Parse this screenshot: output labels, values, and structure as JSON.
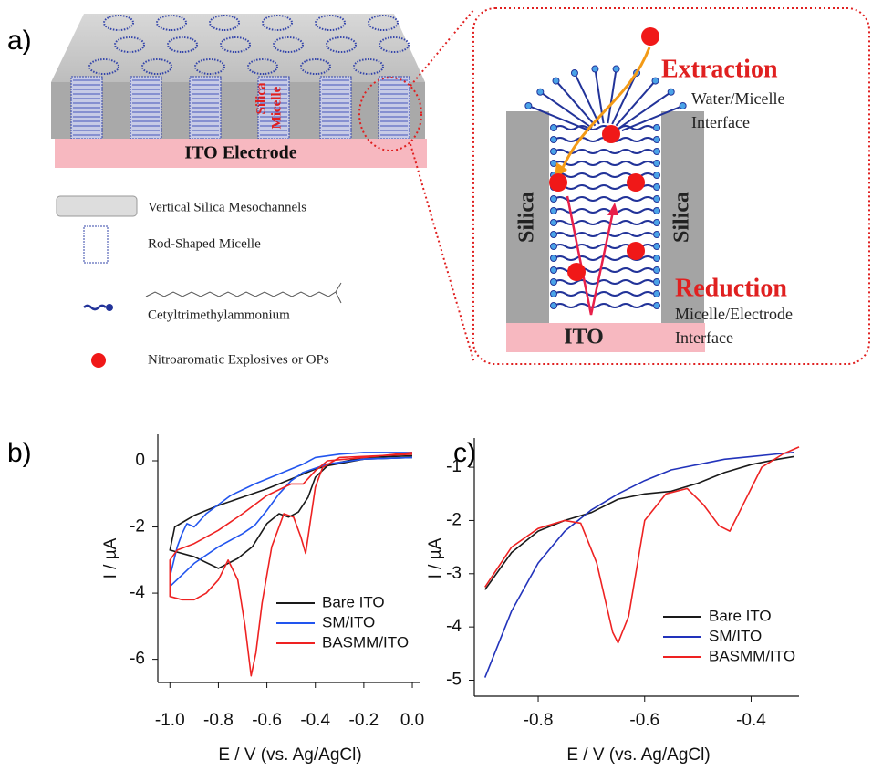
{
  "panel_a": {
    "label": "a)",
    "silica_label": "Silica",
    "micelle_label": "Micelle",
    "electrode_label": "ITO Electrode",
    "legend": [
      "Vertical Silica Mesochannels",
      "Rod-Shaped Micelle",
      "Cetyltrimethylammonium",
      "Nitroaromatic Explosives or OPs"
    ],
    "inset": {
      "extraction": "Extraction",
      "water_interface": [
        "Water/Micelle",
        "Interface"
      ],
      "silica_left": "Silica",
      "silica_right": "Silica",
      "reduction": "Reduction",
      "electrode_interface": [
        "Micelle/Electrode",
        "Interface"
      ],
      "ito": "ITO"
    }
  },
  "chart_data": [
    {
      "type": "line",
      "panel_label": "b)",
      "x_label": "E / V (vs. Ag/AgCl)",
      "y_label": "I / µA",
      "xlim": [
        -1.05,
        0.03
      ],
      "ylim": [
        -6.7,
        0.8
      ],
      "xticks": [
        {
          "value": -1.0,
          "label": "-1.0"
        },
        -0.8,
        -0.6,
        -0.4,
        -0.2,
        {
          "value": 0.0,
          "label": "0.0"
        }
      ],
      "yticks": [
        0,
        -2,
        -4,
        -6
      ],
      "series": [
        {
          "name": "Bare ITO",
          "color": "#1a1a1a",
          "x": [
            0,
            -0.2,
            -0.35,
            -0.4,
            -0.43,
            -0.47,
            -0.51,
            -0.55,
            -0.6,
            -0.66,
            -0.72,
            -0.8,
            -0.9,
            -1.0,
            -0.98,
            -0.9,
            -0.8,
            -0.7,
            -0.6,
            -0.5,
            -0.4,
            -0.3,
            -0.2,
            0
          ],
          "values": [
            0.1,
            0.05,
            -0.15,
            -0.5,
            -1.1,
            -1.55,
            -1.7,
            -1.6,
            -1.9,
            -2.6,
            -2.95,
            -3.25,
            -2.9,
            -2.7,
            -2.0,
            -1.65,
            -1.35,
            -1.1,
            -0.85,
            -0.55,
            -0.25,
            -0.05,
            0.1,
            0.15
          ]
        },
        {
          "name": "SM/ITO",
          "color": "#2255ee",
          "x": [
            0,
            -0.2,
            -0.35,
            -0.45,
            -0.5,
            -0.55,
            -0.6,
            -0.65,
            -0.7,
            -0.8,
            -0.9,
            -1.0,
            -1.0,
            -0.97,
            -0.95,
            -0.93,
            -0.9,
            -0.85,
            -0.75,
            -0.65,
            -0.55,
            -0.45,
            -0.4,
            -0.3,
            -0.2,
            0
          ],
          "values": [
            0.1,
            0.05,
            -0.1,
            -0.35,
            -0.6,
            -1.0,
            -1.5,
            -1.95,
            -2.2,
            -2.6,
            -3.1,
            -3.8,
            -3.5,
            -2.6,
            -2.2,
            -1.9,
            -2.0,
            -1.6,
            -1.05,
            -0.7,
            -0.4,
            -0.1,
            0.1,
            0.2,
            0.25,
            0.25
          ]
        },
        {
          "name": "BASMM/ITO",
          "color": "#ee2222",
          "x": [
            0,
            -0.3,
            -0.37,
            -0.4,
            -0.42,
            -0.44,
            -0.46,
            -0.49,
            -0.53,
            -0.58,
            -0.62,
            -0.645,
            -0.665,
            -0.69,
            -0.72,
            -0.76,
            -0.8,
            -0.85,
            -0.9,
            -0.95,
            -1.0,
            -1.0,
            -0.97,
            -0.9,
            -0.8,
            -0.7,
            -0.6,
            -0.5,
            -0.45,
            -0.4,
            -0.35,
            -0.2,
            0
          ],
          "values": [
            0.2,
            0.1,
            -0.2,
            -0.8,
            -1.8,
            -2.8,
            -2.3,
            -1.7,
            -1.6,
            -2.6,
            -4.3,
            -5.8,
            -6.5,
            -5.0,
            -3.6,
            -3.0,
            -3.6,
            -4.0,
            -4.2,
            -4.2,
            -4.1,
            -3.0,
            -2.7,
            -2.5,
            -2.1,
            -1.6,
            -1.05,
            -0.7,
            -0.7,
            -0.3,
            0.0,
            0.1,
            0.25
          ]
        }
      ]
    },
    {
      "type": "line",
      "panel_label": "c)",
      "x_label": "E / V (vs. Ag/AgCl)",
      "y_label": "I / µA",
      "xlim": [
        -0.92,
        -0.31
      ],
      "ylim": [
        -5.3,
        -0.45
      ],
      "xticks": [
        -0.8,
        -0.6,
        -0.4
      ],
      "yticks": [
        -1,
        -2,
        -3,
        -4,
        -5
      ],
      "series": [
        {
          "name": "Bare ITO",
          "color": "#1a1a1a",
          "x": [
            -0.9,
            -0.85,
            -0.8,
            -0.75,
            -0.7,
            -0.65,
            -0.6,
            -0.55,
            -0.5,
            -0.45,
            -0.4,
            -0.35,
            -0.32
          ],
          "values": [
            -3.3,
            -2.6,
            -2.2,
            -2.0,
            -1.85,
            -1.6,
            -1.5,
            -1.45,
            -1.3,
            -1.1,
            -0.95,
            -0.85,
            -0.8
          ]
        },
        {
          "name": "SM/ITO",
          "color": "#2233bb",
          "x": [
            -0.9,
            -0.85,
            -0.8,
            -0.75,
            -0.7,
            -0.65,
            -0.6,
            -0.55,
            -0.5,
            -0.45,
            -0.4,
            -0.35,
            -0.32
          ],
          "values": [
            -4.95,
            -3.7,
            -2.8,
            -2.2,
            -1.8,
            -1.5,
            -1.25,
            -1.05,
            -0.95,
            -0.85,
            -0.8,
            -0.75,
            -0.72
          ]
        },
        {
          "name": "BASMM/ITO",
          "color": "#ee2222",
          "x": [
            -0.9,
            -0.85,
            -0.8,
            -0.75,
            -0.72,
            -0.69,
            -0.66,
            -0.65,
            -0.63,
            -0.6,
            -0.56,
            -0.52,
            -0.49,
            -0.46,
            -0.44,
            -0.42,
            -0.38,
            -0.34,
            -0.31
          ],
          "values": [
            -3.25,
            -2.5,
            -2.15,
            -2.0,
            -2.05,
            -2.8,
            -4.1,
            -4.3,
            -3.8,
            -2.0,
            -1.5,
            -1.4,
            -1.7,
            -2.1,
            -2.2,
            -1.8,
            -1.0,
            -0.75,
            -0.62
          ]
        }
      ]
    }
  ]
}
